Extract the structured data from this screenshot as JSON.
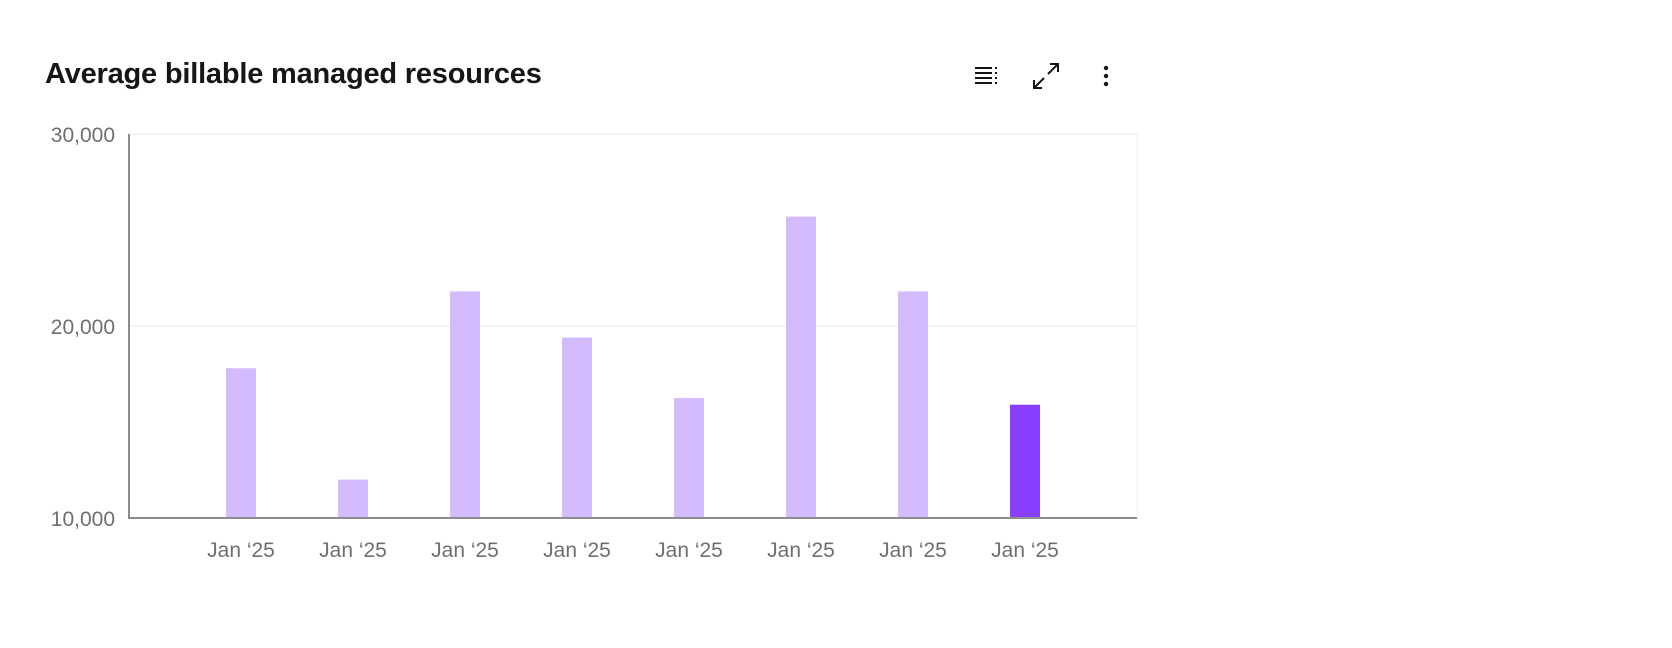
{
  "header": {
    "title": "Average billable managed resources",
    "toolbar": [
      {
        "icon": "table-view-icon",
        "label": ""
      },
      {
        "icon": "maximize-icon",
        "label": ""
      },
      {
        "icon": "overflow-menu-vertical-icon",
        "label": ""
      }
    ]
  },
  "chart_data": {
    "type": "bar",
    "title": "Average billable managed resources",
    "xlabel": "",
    "ylabel": "",
    "categories": [
      "Jan ‘25",
      "Jan ‘25",
      "Jan ‘25",
      "Jan ‘25",
      "Jan ‘25",
      "Jan ‘25",
      "Jan ‘25",
      "Jan ‘25"
    ],
    "values": [
      17800,
      12000,
      21800,
      19400,
      16250,
      25700,
      21800,
      15900
    ],
    "ylim": [
      10000,
      30000
    ],
    "yticks": [
      "10,000",
      "20,000",
      "30,000"
    ],
    "grid": true,
    "legend": "none",
    "colors": {
      "default": "#d4bbff",
      "highlight": "#8a3ffc",
      "axis": "#8d8d8d",
      "grid": "#f0f0f0",
      "tick_label": "#6f6f6f"
    },
    "highlighted_index": 7
  }
}
